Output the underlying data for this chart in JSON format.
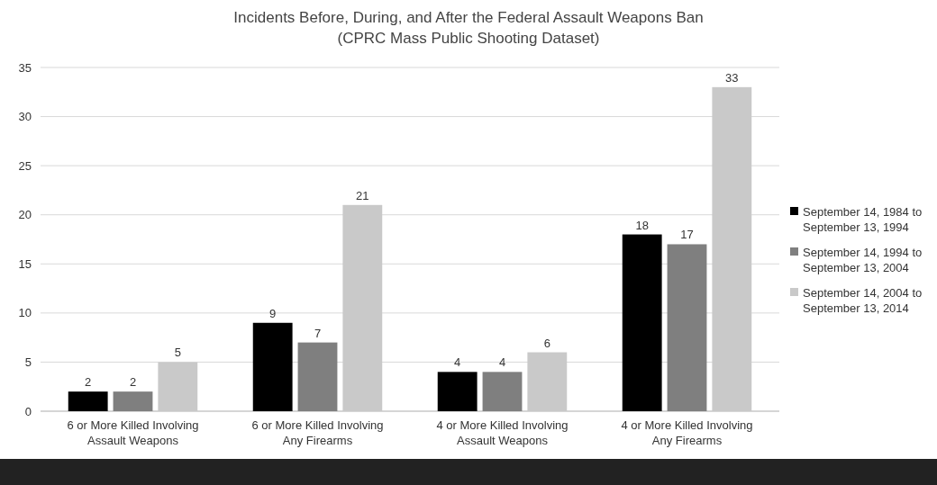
{
  "chart_data": {
    "type": "bar",
    "title": "Incidents Before, During, and After the Federal Assault Weapons Ban",
    "subtitle": "(CPRC Mass Public Shooting Dataset)",
    "categories": [
      "6 or More Killed Involving Assault Weapons",
      "6 or More Killed Involving Any Firearms",
      "4 or More Killed Involving Assault Weapons",
      "4 or More Killed Involving Any Firearms"
    ],
    "series": [
      {
        "name": "September 14, 1984 to September 13, 1994",
        "color": "#000000",
        "values": [
          2,
          9,
          4,
          18
        ]
      },
      {
        "name": "September 14, 1994 to September 13, 2004",
        "color": "#7f7f7f",
        "values": [
          2,
          7,
          4,
          17
        ]
      },
      {
        "name": "September 14, 2004 to September 13, 2014",
        "color": "#c9c9c9",
        "values": [
          5,
          21,
          6,
          33
        ]
      }
    ],
    "ylim": [
      0,
      35
    ],
    "yticks": [
      0,
      5,
      10,
      15,
      20,
      25,
      30,
      35
    ],
    "grid": "y",
    "legend": "right",
    "data_labels": true
  }
}
